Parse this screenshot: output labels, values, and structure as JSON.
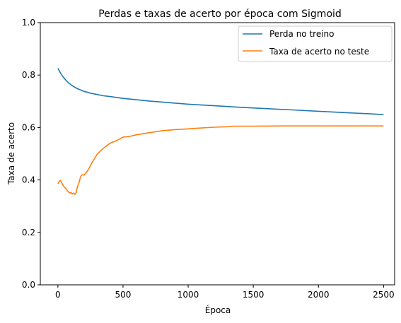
{
  "chart_data": {
    "type": "line",
    "title": "Perdas e taxas de acerto por época com Sigmoid",
    "xlabel": "Época",
    "ylabel": "Taxa de acerto",
    "xlim": [
      -135,
      2585
    ],
    "ylim": [
      0.0,
      1.0
    ],
    "xticks": [
      0,
      500,
      1000,
      1500,
      2000,
      2500
    ],
    "yticks": [
      0.0,
      0.2,
      0.4,
      0.6,
      0.8,
      1.0
    ],
    "xtick_labels": [
      "0",
      "500",
      "1000",
      "1500",
      "2000",
      "2500"
    ],
    "ytick_labels": [
      "0.0",
      "0.2",
      "0.4",
      "0.6",
      "0.8",
      "1.0"
    ],
    "grid": false,
    "legend_position": "top-right",
    "series": [
      {
        "name": "Perda no treino",
        "color": "#1f77b4",
        "x": [
          0,
          20,
          40,
          60,
          80,
          100,
          125,
          150,
          175,
          200,
          250,
          300,
          350,
          400,
          500,
          600,
          700,
          800,
          900,
          1000,
          1200,
          1400,
          1600,
          1800,
          2000,
          2200,
          2400,
          2500
        ],
        "y": [
          0.826,
          0.808,
          0.793,
          0.781,
          0.771,
          0.763,
          0.755,
          0.748,
          0.743,
          0.738,
          0.731,
          0.726,
          0.721,
          0.718,
          0.711,
          0.706,
          0.701,
          0.697,
          0.693,
          0.689,
          0.683,
          0.677,
          0.672,
          0.667,
          0.662,
          0.657,
          0.652,
          0.649
        ]
      },
      {
        "name": "Taxa de acerto no teste",
        "color": "#ff7f0e",
        "x": [
          0,
          10,
          20,
          30,
          40,
          50,
          60,
          70,
          80,
          90,
          100,
          110,
          120,
          130,
          140,
          150,
          160,
          170,
          180,
          190,
          200,
          220,
          240,
          260,
          280,
          300,
          330,
          360,
          400,
          450,
          500,
          550,
          600,
          700,
          800,
          900,
          1000,
          1100,
          1200,
          1300,
          1350,
          1500,
          1700,
          1800,
          2000,
          2500
        ],
        "y": [
          0.385,
          0.395,
          0.398,
          0.388,
          0.38,
          0.372,
          0.368,
          0.36,
          0.355,
          0.35,
          0.352,
          0.347,
          0.35,
          0.345,
          0.352,
          0.375,
          0.385,
          0.405,
          0.418,
          0.42,
          0.418,
          0.43,
          0.445,
          0.465,
          0.48,
          0.497,
          0.512,
          0.525,
          0.54,
          0.55,
          0.563,
          0.566,
          0.572,
          0.58,
          0.588,
          0.592,
          0.595,
          0.598,
          0.601,
          0.603,
          0.605,
          0.605,
          0.606,
          0.606,
          0.606,
          0.606
        ]
      }
    ]
  }
}
